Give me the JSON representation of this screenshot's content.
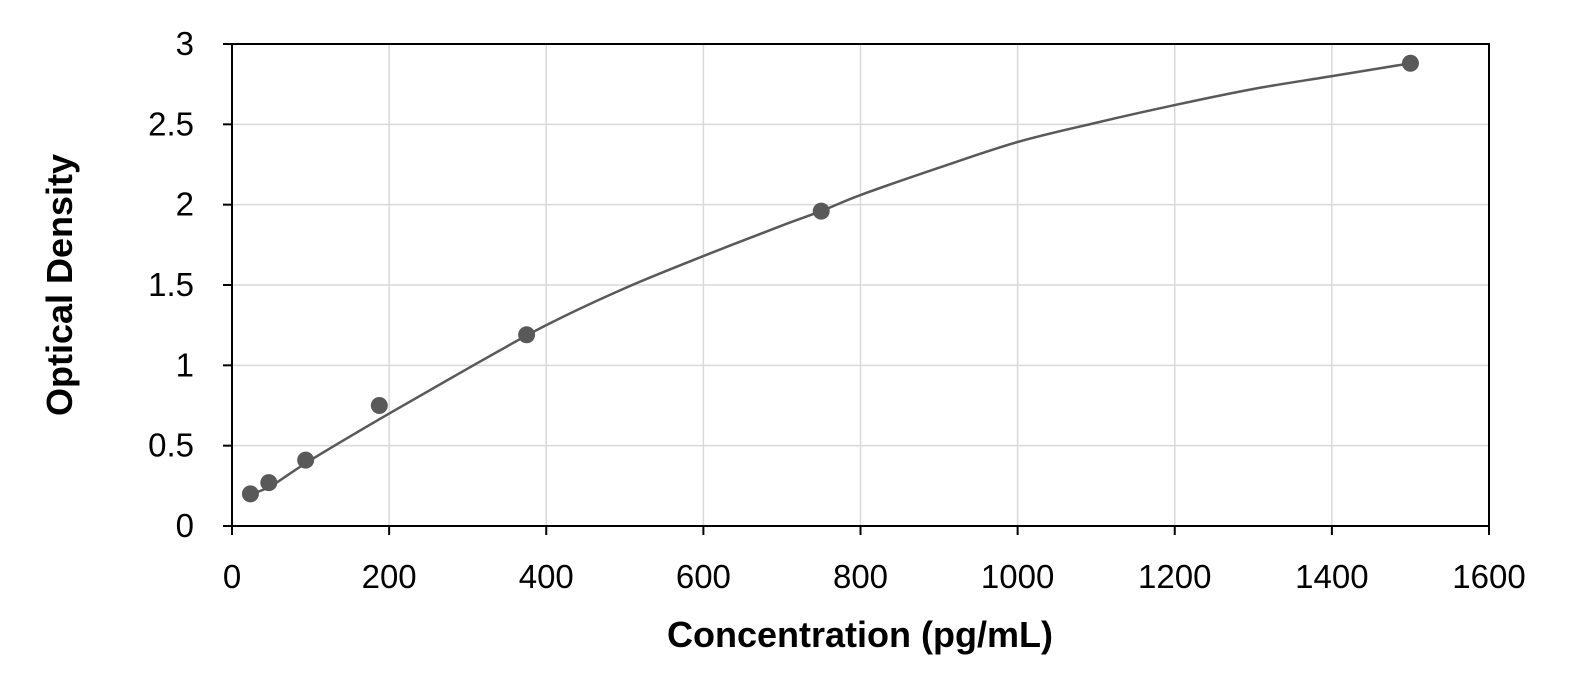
{
  "chart_data": {
    "type": "scatter",
    "title": "",
    "xlabel": "Concentration (pg/mL)",
    "ylabel": "Optical Density",
    "xlim": [
      0,
      1600
    ],
    "ylim": [
      0,
      3
    ],
    "x_ticks": [
      "0",
      "200",
      "400",
      "600",
      "800",
      "1000",
      "1200",
      "1400",
      "1600"
    ],
    "y_ticks": [
      "0",
      "0.5",
      "1",
      "1.5",
      "2",
      "2.5",
      "3"
    ],
    "grid": true,
    "legend": "none",
    "colors": {
      "points": "#595959",
      "curve": "#595959",
      "grid": "#d9d9d9",
      "frame": "#000000"
    },
    "series": [
      {
        "x": [
          23.44,
          46.88,
          93.75,
          187.5,
          375,
          750,
          1500
        ],
        "y": [
          0.2,
          0.27,
          0.41,
          0.75,
          1.19,
          1.96,
          2.88
        ]
      }
    ],
    "fit_curve": {
      "x": [
        0,
        25,
        50,
        100,
        200,
        300,
        400,
        500,
        600,
        700,
        750,
        800,
        900,
        1000,
        1100,
        1200,
        1300,
        1400,
        1500
      ],
      "y": [
        0.16,
        0.2,
        0.25,
        0.41,
        0.7,
        0.98,
        1.25,
        1.48,
        1.68,
        1.87,
        1.96,
        2.06,
        2.23,
        2.39,
        2.51,
        2.62,
        2.72,
        2.8,
        2.88
      ]
    }
  }
}
